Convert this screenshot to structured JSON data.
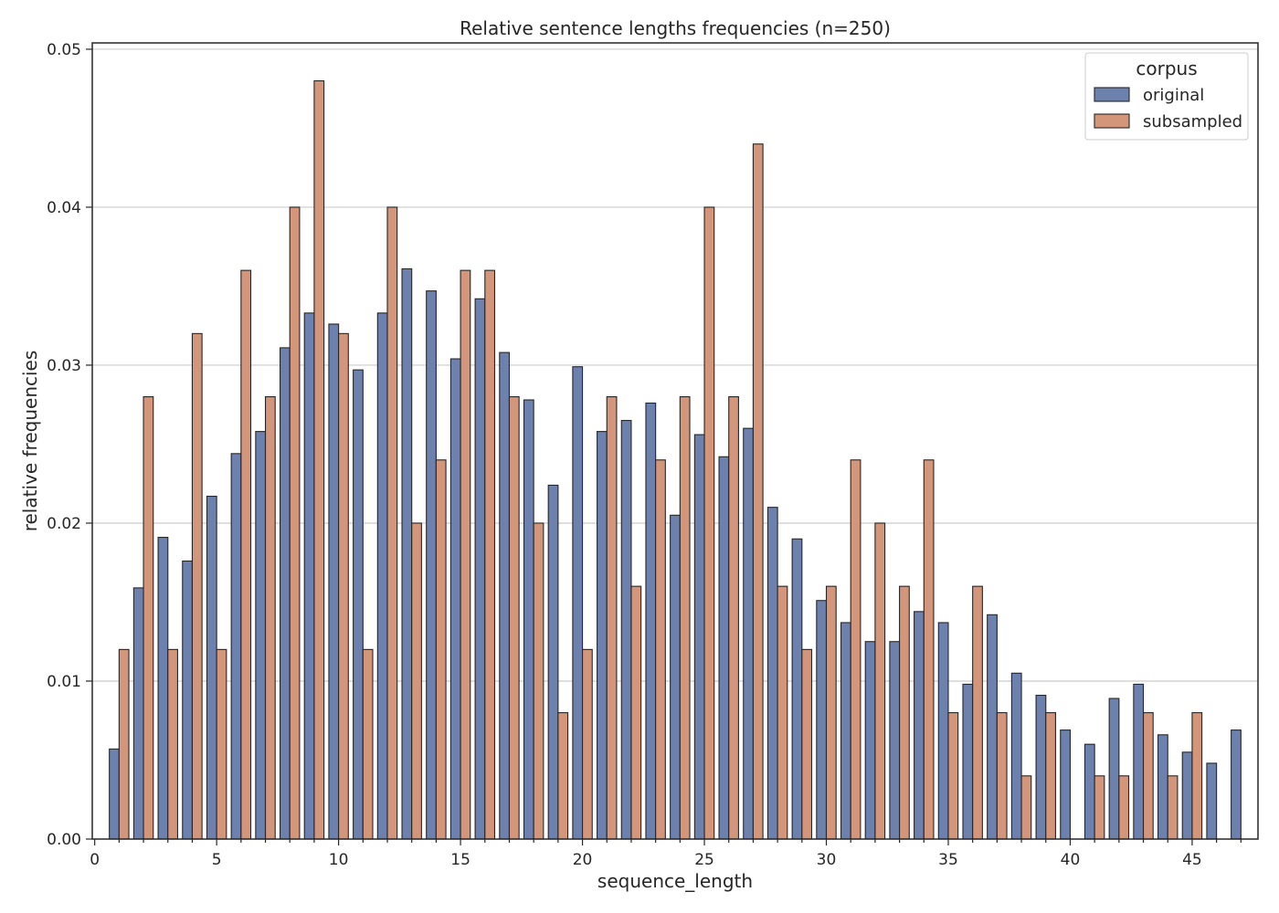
{
  "chart_data": {
    "type": "bar",
    "title": "Relative sentence lengths frequencies (n=250)",
    "xlabel": "sequence_length",
    "ylabel": "relative frequencies",
    "xlim": [
      -0.1,
      47.7
    ],
    "ylim": [
      0,
      0.0504
    ],
    "x_ticks": [
      0,
      5,
      10,
      15,
      20,
      25,
      30,
      35,
      40,
      45
    ],
    "x_tick_labels": [
      "0",
      "5",
      "10",
      "15",
      "20",
      "25",
      "30",
      "35",
      "40",
      "45"
    ],
    "y_ticks": [
      0,
      0.01,
      0.02,
      0.03,
      0.04,
      0.05
    ],
    "y_tick_labels": [
      "0.00",
      "0.01",
      "0.02",
      "0.03",
      "0.04",
      "0.05"
    ],
    "grid": "y",
    "legend": {
      "title": "corpus",
      "placement": "top-right"
    },
    "x": [
      1,
      2,
      3,
      4,
      5,
      6,
      7,
      8,
      9,
      10,
      11,
      12,
      13,
      14,
      15,
      16,
      17,
      18,
      19,
      20,
      21,
      22,
      23,
      24,
      25,
      26,
      27,
      28,
      29,
      30,
      31,
      32,
      33,
      34,
      35,
      36,
      37,
      38,
      39,
      40,
      41,
      42,
      43,
      44,
      45,
      46,
      47
    ],
    "series": [
      {
        "name": "original",
        "color": "#6c81ad",
        "values": [
          0.0057,
          0.0159,
          0.0191,
          0.0176,
          0.0217,
          0.0244,
          0.0258,
          0.0311,
          0.0333,
          0.0326,
          0.0297,
          0.0333,
          0.0361,
          0.0347,
          0.0304,
          0.0342,
          0.0308,
          0.0278,
          0.0224,
          0.0299,
          0.0258,
          0.0265,
          0.0276,
          0.0205,
          0.0256,
          0.0242,
          0.026,
          0.021,
          0.019,
          0.0151,
          0.0137,
          0.0125,
          0.0125,
          0.0144,
          0.0137,
          0.0098,
          0.0142,
          0.0105,
          0.0091,
          0.0069,
          0.006,
          0.0089,
          0.0098,
          0.0066,
          0.0055,
          0.0048,
          0.0069
        ]
      },
      {
        "name": "subsampled",
        "color": "#d3967a",
        "values": [
          0.012,
          0.028,
          0.012,
          0.032,
          0.012,
          0.036,
          0.028,
          0.04,
          0.048,
          0.032,
          0.012,
          0.04,
          0.02,
          0.024,
          0.036,
          0.036,
          0.028,
          0.02,
          0.008,
          0.012,
          0.028,
          0.016,
          0.024,
          0.028,
          0.04,
          0.028,
          0.044,
          0.016,
          0.012,
          0.016,
          0.024,
          0.02,
          0.016,
          0.024,
          0.008,
          0.016,
          0.008,
          0.004,
          0.008,
          0,
          0.004,
          0.004,
          0.008,
          0.004,
          0.008,
          0,
          0
        ]
      }
    ]
  }
}
